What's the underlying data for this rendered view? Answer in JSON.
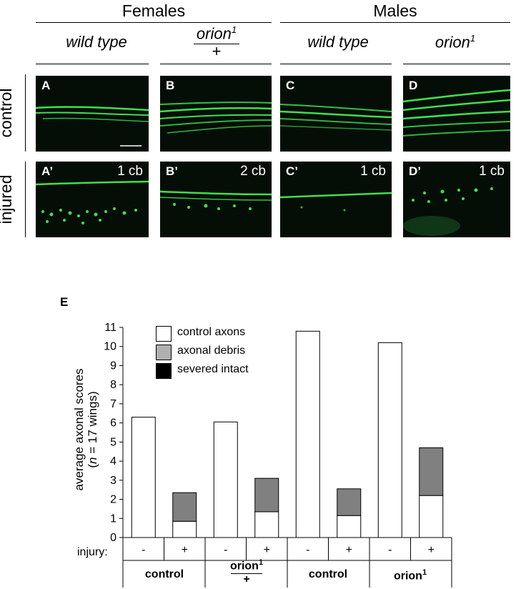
{
  "headers": {
    "females": "Females",
    "males": "Males"
  },
  "genotypes": {
    "f_wt": "wild type",
    "f_orion_num": "orion",
    "f_orion_sup": "1",
    "f_orion_den": "+",
    "m_wt": "wild type",
    "m_orion": "orion",
    "m_orion_sup": "1"
  },
  "row_labels": {
    "control": "control",
    "injured": "injured"
  },
  "panels": [
    {
      "label": "A",
      "cb": ""
    },
    {
      "label": "B",
      "cb": ""
    },
    {
      "label": "C",
      "cb": ""
    },
    {
      "label": "D",
      "cb": ""
    },
    {
      "label": "A’",
      "cb": "1 cb"
    },
    {
      "label": "B’",
      "cb": "2 cb"
    },
    {
      "label": "C’",
      "cb": "1 cb"
    },
    {
      "label": "D’",
      "cb": "1 cb"
    }
  ],
  "panel_e_label": "E",
  "colors": {
    "control_axons": "#ffffff",
    "axonal_debris": "#808080",
    "severed_intact": "#000000",
    "axon_green": "#3ee04a"
  },
  "chart_data": {
    "type": "bar",
    "stacked": true,
    "ylabel_line1": "average axonal scores",
    "ylabel_line2_pre": "(",
    "ylabel_n": "n",
    "ylabel_line2_post": " = 17 wings)",
    "ylim": [
      0,
      11
    ],
    "yticks": [
      "0",
      "1",
      "2",
      "3",
      "4",
      "5",
      "6",
      "7",
      "8",
      "9",
      "10",
      "11"
    ],
    "injury_label": "injury:",
    "injury": [
      "-",
      "+",
      "-",
      "+",
      "-",
      "+",
      "-",
      "+"
    ],
    "groups": [
      {
        "label": "control",
        "sup": ""
      },
      {
        "label": "orion",
        "sup": "1",
        "den": "+"
      },
      {
        "label": "control",
        "sup": ""
      },
      {
        "label": "orion",
        "sup": "1"
      }
    ],
    "series": [
      {
        "name": "control axons",
        "values": [
          6.3,
          0.85,
          6.05,
          1.35,
          10.8,
          1.15,
          10.2,
          2.2
        ]
      },
      {
        "name": "axonal debris",
        "values": [
          0,
          1.5,
          0,
          1.75,
          0,
          1.4,
          0,
          2.5
        ]
      },
      {
        "name": "severed intact",
        "values": [
          0,
          0,
          0,
          0,
          0,
          0,
          0,
          0
        ]
      }
    ],
    "legend_position": "top-left"
  }
}
